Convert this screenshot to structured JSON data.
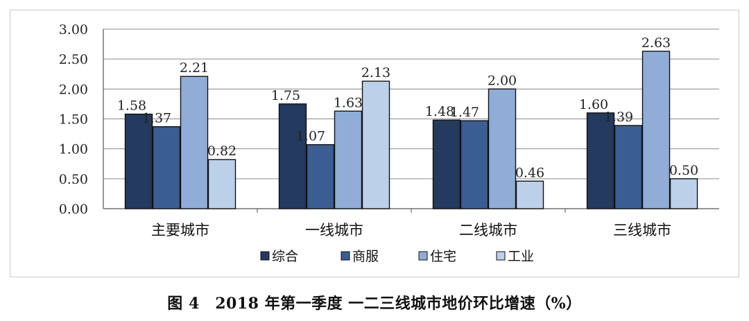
{
  "chart_data": {
    "type": "bar",
    "categories": [
      "主要城市",
      "一线城市",
      "二线城市",
      "三线城市"
    ],
    "series": [
      {
        "name": "综合",
        "color": "#243a5e",
        "values": [
          1.58,
          1.75,
          1.48,
          1.6
        ]
      },
      {
        "name": "商服",
        "color": "#3b5e92",
        "values": [
          1.37,
          1.07,
          1.47,
          1.39
        ]
      },
      {
        "name": "住宅",
        "color": "#8fadd6",
        "values": [
          2.21,
          1.63,
          2.0,
          2.63
        ]
      },
      {
        "name": "工业",
        "color": "#bcd0ea",
        "values": [
          0.82,
          2.13,
          0.46,
          0.5
        ]
      }
    ],
    "y_ticks": [
      "0.00",
      "0.50",
      "1.00",
      "1.50",
      "2.00",
      "2.50",
      "3.00"
    ],
    "ylim": [
      0,
      3
    ],
    "grid": true,
    "legend_position": "bottom"
  },
  "caption": "图 4　2018 年第一季度 一二三线城市地价环比增速（%）"
}
